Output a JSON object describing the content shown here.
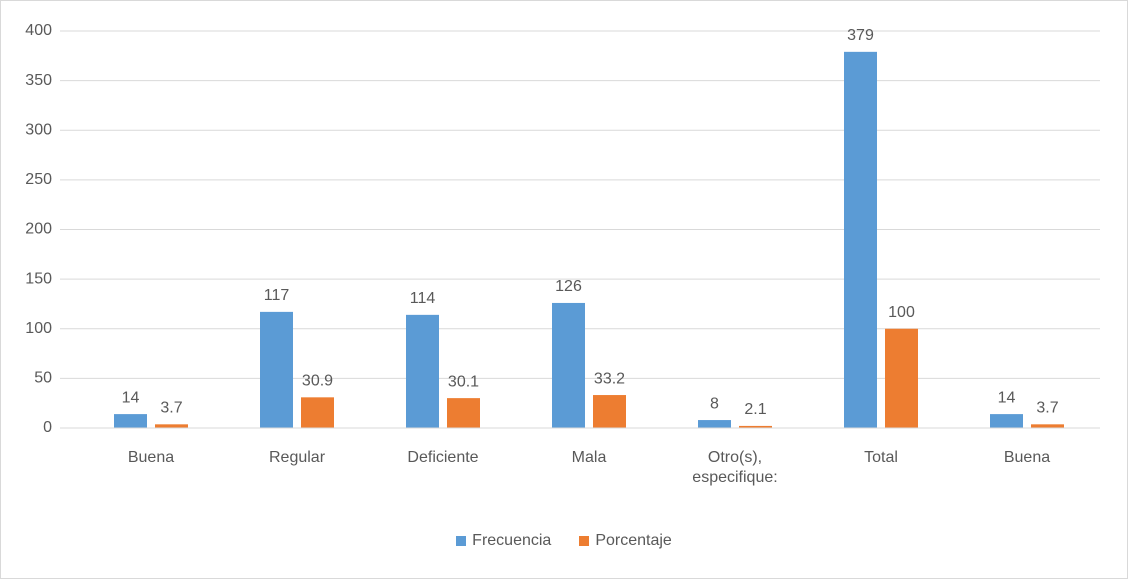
{
  "chart_data": {
    "type": "bar",
    "categories": [
      "Buena",
      "Regular",
      "Deficiente",
      "Mala",
      "Otro(s), especifique:",
      "Total",
      "Buena"
    ],
    "series": [
      {
        "name": "Frecuencia",
        "color": "#5b9bd5",
        "values": [
          14,
          117,
          114,
          126,
          8,
          379,
          14
        ]
      },
      {
        "name": "Porcentaje",
        "color": "#ed7d31",
        "values": [
          3.7,
          30.9,
          30.1,
          33.2,
          2.1,
          100,
          3.7
        ]
      }
    ],
    "ylim": [
      0,
      400
    ],
    "yticks": [
      0,
      50,
      100,
      150,
      200,
      250,
      300,
      350,
      400
    ],
    "grid": true,
    "legend": "bottom"
  }
}
